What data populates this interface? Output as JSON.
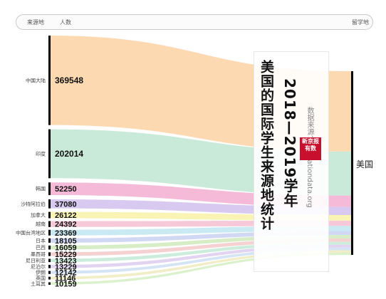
{
  "header": {
    "source_label": "来源地",
    "count_label": "人数",
    "destination_label": "留学地"
  },
  "title": {
    "main": "美国的国际学生来源地统计",
    "years": "2018—2019学年",
    "source": "数据来源：educationdata.org",
    "logo": "新京报 有数"
  },
  "colors": {
    "中国大陆": "#fdd7ae",
    "印度": "#c7e9d7",
    "韩国": "#f4b6d6",
    "沙特阿拉伯": "#d6c6ef",
    "加拿大": "#f9f3b0",
    "越南": "#f7c6d6",
    "中国台湾地区": "#c6e8f2",
    "日本": "#cfd6f3",
    "巴西": "#d5ecc3",
    "墨西哥": "#f6cfcf",
    "尼日利亚": "#c9ecd9",
    "尼泊尔": "#e0d2f0",
    "伊朗": "#d3e3f4",
    "英国": "#f0ecc4",
    "土耳其": "#d9f0c9"
  },
  "chart_data": {
    "type": "sankey",
    "title": "美国的国际学生来源地统计",
    "subtitle": "2018—2019学年",
    "source_column_label": "来源地",
    "value_column_label": "人数",
    "target_column_label": "留学地",
    "target": "美国",
    "categories": [
      "中国大陆",
      "印度",
      "韩国",
      "沙特阿拉伯",
      "加拿大",
      "越南",
      "中国台湾地区",
      "日本",
      "巴西",
      "墨西哥",
      "尼日利亚",
      "尼泊尔",
      "伊朗",
      "英国",
      "土耳其"
    ],
    "values": [
      369548,
      202014,
      52250,
      37080,
      26122,
      24392,
      23369,
      18105,
      16059,
      15229,
      13423,
      13229,
      12142,
      11146,
      10159
    ]
  }
}
